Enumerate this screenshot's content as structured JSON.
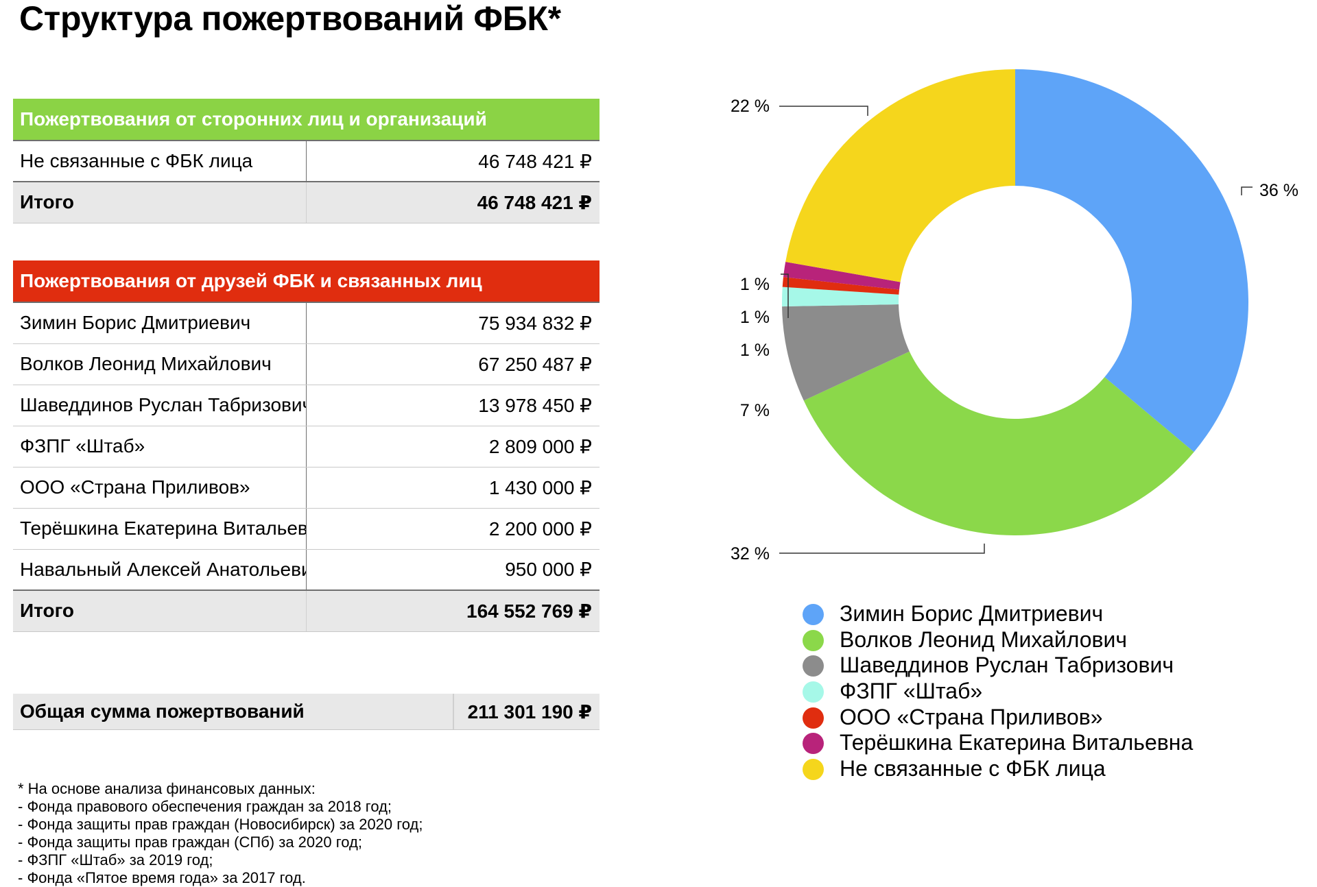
{
  "title": "Структура пожертвований ФБК*",
  "table_outside": {
    "header": "Пожертвования от сторонних лиц и организаций",
    "rows": [
      {
        "name": "Не связанные с ФБК лица",
        "value": "46 748 421 ₽"
      }
    ],
    "total_label": "Итого",
    "total_value": "46 748 421 ₽"
  },
  "table_friends": {
    "header": "Пожертвования от друзей ФБК и связанных лиц",
    "rows": [
      {
        "name": "Зимин Борис Дмитриевич",
        "value": "75 934 832 ₽"
      },
      {
        "name": "Волков Леонид Михайлович",
        "value": "67 250 487 ₽"
      },
      {
        "name": "Шаведдинов Руслан Табризович",
        "value": "13 978 450 ₽"
      },
      {
        "name": "ФЗПГ «Штаб»",
        "value": "2 809 000 ₽"
      },
      {
        "name": "ООО «Страна Приливов»",
        "value": "1 430 000 ₽"
      },
      {
        "name": "Терёшкина Екатерина Витальевна",
        "value": "2 200 000 ₽"
      },
      {
        "name": "Навальный Алексей Анатольевич",
        "value": "950 000 ₽"
      }
    ],
    "total_label": "Итого",
    "total_value": "164 552 769 ₽"
  },
  "grand_total": {
    "label": "Общая сумма пожертвований",
    "value": "211 301 190 ₽"
  },
  "footnote": [
    "* На основе анализа финансовых данных:",
    "- Фонда правового обеспечения граждан за 2018 год;",
    "- Фонда защиты прав граждан (Новосибирск) за 2020 год;",
    "- Фонда защиты прав граждан (СПб) за 2020 год;",
    "- ФЗПГ «Штаб» за 2019 год;",
    "- Фонда «Пятое время года» за 2017 год."
  ],
  "chart_data": {
    "type": "pie",
    "donut": true,
    "start": "12 o'clock, clockwise",
    "legend_position": "bottom",
    "slices": [
      {
        "name": "Зимин Борис Дмитриевич",
        "value": 75934832,
        "percent_label": "36 %",
        "color": "#5ea4f8"
      },
      {
        "name": "Волков Леонид Михайлович",
        "value": 67250487,
        "percent_label": "32 %",
        "color": "#8bd84a"
      },
      {
        "name": "Шаведдинов Руслан Табризович",
        "value": 13978450,
        "percent_label": "7 %",
        "color": "#8c8c8c"
      },
      {
        "name": "ФЗПГ «Штаб»",
        "value": 2809000,
        "percent_label": "1 %",
        "color": "#a6f8e8"
      },
      {
        "name": "ООО «Страна Приливов»",
        "value": 1430000,
        "percent_label": "1 %",
        "color": "#e02d0f"
      },
      {
        "name": "Терёшкина Екатерина Витальевна",
        "value": 2200000,
        "percent_label": "1 %",
        "color": "#b8237a"
      },
      {
        "name": "Не связанные с ФБК лица",
        "value": 46748421,
        "percent_label": "22 %",
        "color": "#f5d61c"
      }
    ]
  }
}
